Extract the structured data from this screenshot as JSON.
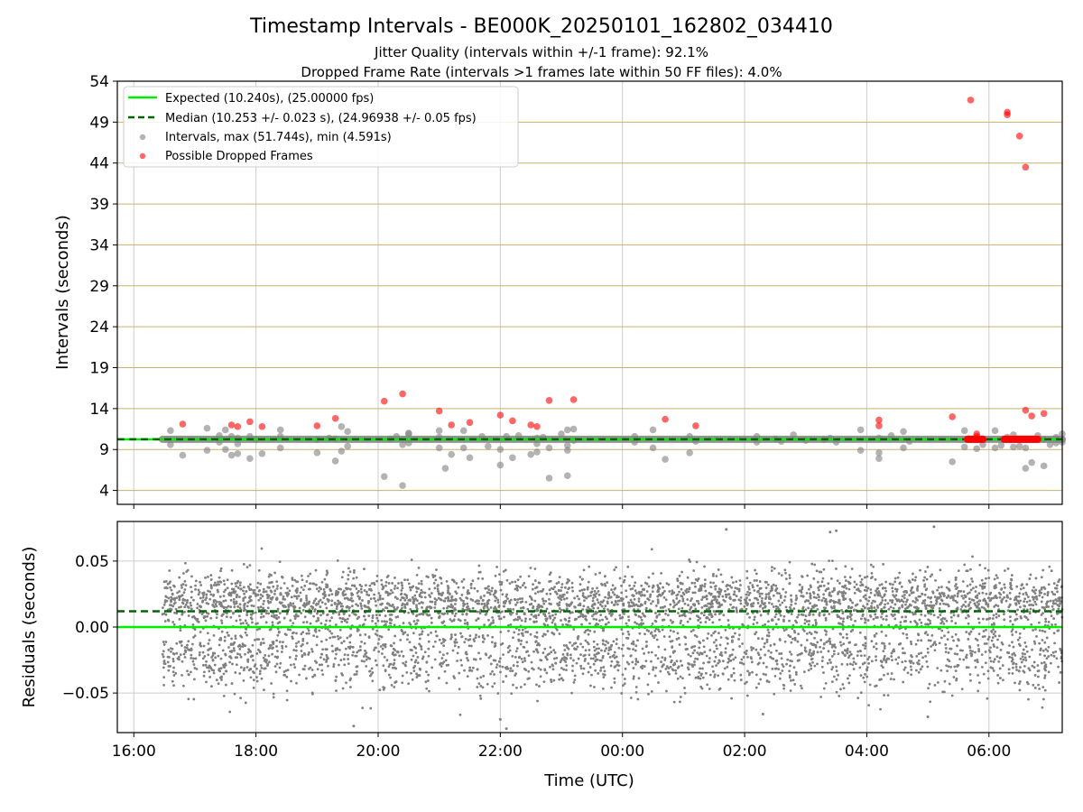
{
  "figure": {
    "title": "Timestamp Intervals - BE000K_20250101_162802_034410",
    "subtitle_line1": "Jitter Quality (intervals within +/-1 frame): 92.1%",
    "subtitle_line2": "Dropped Frame Rate (intervals >1 frames late within 50 FF files): 4.0%",
    "xlabel": "Time (UTC)"
  },
  "colors": {
    "expected": "#00ee00",
    "median": "#006400",
    "intervals": "#808080",
    "dropped": "#ff0000",
    "ygrid": "#c9b067",
    "xgrid": "#cccccc"
  },
  "chart_data": [
    {
      "type": "scatter",
      "ylabel": "Intervals (seconds)",
      "x_unit": "hours after 16:00 UTC (2025-01-01)",
      "xlim": [
        -0.27,
        15.2
      ],
      "x_ticks": [
        0,
        2,
        4,
        6,
        8,
        10,
        12,
        14
      ],
      "x_tick_labels": [
        "16:00",
        "18:00",
        "20:00",
        "22:00",
        "00:00",
        "02:00",
        "04:00",
        "06:00"
      ],
      "ylim": [
        2.3,
        54
      ],
      "y_ticks": [
        4,
        9,
        14,
        19,
        24,
        29,
        34,
        39,
        44,
        49,
        54
      ],
      "y_tick_labels": [
        "4",
        "9",
        "14",
        "19",
        "24",
        "29",
        "34",
        "39",
        "44",
        "49",
        "54"
      ],
      "grid": true,
      "legend_position": "top-left",
      "legend": [
        "Expected (10.240s), (25.00000 fps)",
        "Median (10.253 +/- 0.023 s), (24.96938 +/- 0.05 fps)",
        "Intervals, max (51.744s), min (4.591s)",
        "Possible Dropped Frames"
      ],
      "expected_interval": 10.24,
      "median_interval": 10.253,
      "interval_range": [
        0.47,
        15.2
      ],
      "intervals_baseline": 10.25,
      "interval_outliers": [
        [
          0.6,
          11.3
        ],
        [
          0.6,
          9.6
        ],
        [
          0.8,
          8.3
        ],
        [
          1.2,
          11.6
        ],
        [
          1.2,
          8.9
        ],
        [
          1.4,
          9.9
        ],
        [
          1.4,
          10.7
        ],
        [
          1.5,
          11.4
        ],
        [
          1.5,
          9.0
        ],
        [
          1.6,
          10.6
        ],
        [
          1.6,
          8.3
        ],
        [
          1.7,
          10.4
        ],
        [
          1.7,
          8.5
        ],
        [
          1.7,
          9.7
        ],
        [
          1.9,
          10.6
        ],
        [
          1.9,
          7.9
        ],
        [
          2.0,
          10.2
        ],
        [
          2.1,
          8.5
        ],
        [
          2.4,
          10.6
        ],
        [
          2.4,
          9.2
        ],
        [
          2.4,
          11.4
        ],
        [
          3.0,
          10.2
        ],
        [
          3.0,
          8.6
        ],
        [
          3.2,
          10.4
        ],
        [
          3.3,
          7.6
        ],
        [
          3.3,
          10.3
        ],
        [
          3.4,
          11.8
        ],
        [
          3.4,
          8.8
        ],
        [
          3.5,
          9.4
        ],
        [
          3.5,
          11.2
        ],
        [
          4.1,
          5.7
        ],
        [
          4.2,
          10.3
        ],
        [
          4.3,
          10.6
        ],
        [
          4.4,
          4.6
        ],
        [
          4.4,
          9.6
        ],
        [
          4.5,
          10.9
        ],
        [
          4.5,
          11.0
        ],
        [
          4.5,
          9.8
        ],
        [
          5.0,
          11.3
        ],
        [
          5.0,
          9.2
        ],
        [
          5.0,
          10.5
        ],
        [
          5.1,
          6.7
        ],
        [
          5.2,
          8.4
        ],
        [
          5.4,
          11.3
        ],
        [
          5.4,
          9.2
        ],
        [
          5.5,
          8.0
        ],
        [
          5.7,
          10.6
        ],
        [
          5.8,
          9.4
        ],
        [
          6.0,
          7.1
        ],
        [
          6.0,
          9.0
        ],
        [
          6.1,
          10.6
        ],
        [
          6.2,
          8.0
        ],
        [
          6.3,
          10.7
        ],
        [
          6.5,
          8.4
        ],
        [
          6.6,
          10.4
        ],
        [
          6.6,
          8.7
        ],
        [
          6.6,
          9.7
        ],
        [
          6.7,
          10.5
        ],
        [
          6.8,
          9.2
        ],
        [
          6.8,
          5.5
        ],
        [
          7.0,
          10.9
        ],
        [
          7.1,
          9.5
        ],
        [
          7.1,
          8.9
        ],
        [
          7.1,
          11.4
        ],
        [
          7.2,
          11.5
        ],
        [
          7.2,
          10.1
        ],
        [
          7.1,
          5.8
        ],
        [
          8.2,
          10.6
        ],
        [
          8.2,
          9.9
        ],
        [
          8.5,
          11.4
        ],
        [
          8.5,
          9.2
        ],
        [
          8.7,
          7.8
        ],
        [
          9.1,
          10.6
        ],
        [
          9.1,
          8.6
        ],
        [
          9.2,
          10.0
        ],
        [
          10.2,
          10.6
        ],
        [
          10.2,
          9.9
        ],
        [
          10.5,
          10.3
        ],
        [
          10.6,
          10.0
        ],
        [
          10.8,
          10.8
        ],
        [
          11.0,
          10.1
        ],
        [
          11.3,
          10.2
        ],
        [
          11.4,
          10.4
        ],
        [
          11.5,
          9.9
        ],
        [
          11.9,
          11.4
        ],
        [
          11.9,
          8.9
        ],
        [
          12.2,
          10.4
        ],
        [
          12.2,
          8.6
        ],
        [
          12.2,
          7.9
        ],
        [
          12.4,
          10.7
        ],
        [
          12.6,
          11.2
        ],
        [
          12.6,
          9.2
        ],
        [
          12.7,
          10.0
        ],
        [
          13.4,
          7.5
        ],
        [
          13.6,
          11.3
        ],
        [
          13.6,
          9.3
        ],
        [
          13.8,
          9.1
        ],
        [
          13.9,
          9.6
        ],
        [
          14.1,
          11.3
        ],
        [
          14.1,
          9.2
        ],
        [
          14.2,
          9.5
        ],
        [
          14.4,
          10.8
        ],
        [
          14.5,
          9.4
        ],
        [
          14.6,
          6.7
        ],
        [
          14.6,
          9.2
        ],
        [
          14.7,
          7.4
        ],
        [
          14.8,
          10.7
        ],
        [
          14.9,
          7.0
        ],
        [
          14.9,
          10.2
        ],
        [
          15.0,
          9.6
        ],
        [
          15.1,
          10.5
        ],
        [
          15.1,
          9.8
        ],
        [
          15.2,
          10.9
        ],
        [
          15.2,
          9.9
        ],
        [
          14.4,
          9.3
        ],
        [
          14.3,
          10.5
        ]
      ],
      "dropped_frames": [
        [
          0.8,
          12.1
        ],
        [
          1.6,
          12.0
        ],
        [
          1.7,
          11.8
        ],
        [
          1.9,
          12.4
        ],
        [
          2.1,
          11.8
        ],
        [
          3.0,
          11.9
        ],
        [
          3.3,
          12.8
        ],
        [
          4.1,
          14.9
        ],
        [
          4.4,
          15.8
        ],
        [
          5.0,
          13.7
        ],
        [
          5.2,
          12.0
        ],
        [
          5.5,
          12.3
        ],
        [
          6.0,
          13.2
        ],
        [
          6.2,
          12.5
        ],
        [
          6.5,
          12.0
        ],
        [
          6.6,
          11.8
        ],
        [
          6.8,
          15.0
        ],
        [
          7.2,
          15.1
        ],
        [
          8.7,
          12.7
        ],
        [
          9.2,
          11.9
        ],
        [
          12.2,
          12.6
        ],
        [
          12.2,
          11.9
        ],
        [
          13.4,
          13.0
        ],
        [
          13.7,
          51.7
        ],
        [
          13.8,
          10.6
        ],
        [
          13.8,
          10.9
        ],
        [
          14.3,
          49.9
        ],
        [
          14.3,
          50.2
        ],
        [
          14.5,
          47.3
        ],
        [
          14.6,
          43.5
        ],
        [
          14.6,
          13.8
        ],
        [
          14.7,
          13.1
        ],
        [
          14.9,
          13.4
        ]
      ],
      "dropped_frame_runs": [
        {
          "from": 13.65,
          "to": 13.9,
          "y": 10.25
        },
        {
          "from": 14.25,
          "to": 14.8,
          "y": 10.25
        }
      ]
    },
    {
      "type": "scatter",
      "ylabel": "Residuals (seconds)",
      "x_unit": "hours after 16:00 UTC (2025-01-01)",
      "xlim": [
        -0.27,
        15.2
      ],
      "x_ticks": [
        0,
        2,
        4,
        6,
        8,
        10,
        12,
        14
      ],
      "ylim": [
        -0.08,
        0.08
      ],
      "y_ticks": [
        -0.05,
        0.0,
        0.05
      ],
      "y_tick_labels": [
        "−0.05",
        "0.00",
        "0.05"
      ],
      "grid": true,
      "expected_residual": 0.0,
      "median_residual": 0.012,
      "residual_x_range": [
        0.47,
        15.2
      ],
      "residual_count": 5000,
      "residual_components": [
        {
          "weight": 0.6,
          "mean": 0.02,
          "std": 0.011
        },
        {
          "weight": 0.4,
          "mean": -0.022,
          "std": 0.014
        }
      ],
      "residual_range": [
        -0.078,
        0.076
      ],
      "residual_extremes": [
        [
          3.6,
          -0.075
        ],
        [
          6.1,
          -0.077
        ],
        [
          6.0,
          -0.07
        ],
        [
          13.1,
          0.076
        ],
        [
          11.4,
          0.072
        ],
        [
          11.5,
          0.073
        ],
        [
          13.0,
          -0.068
        ],
        [
          10.3,
          -0.066
        ],
        [
          9.7,
          0.074
        ]
      ]
    }
  ]
}
